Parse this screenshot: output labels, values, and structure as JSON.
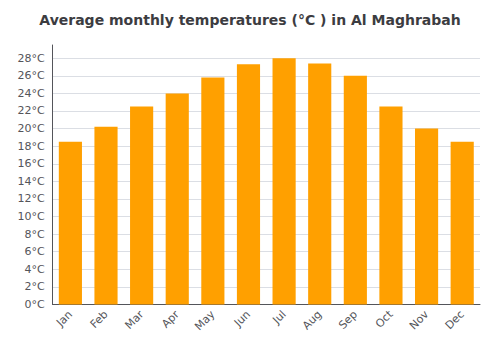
{
  "chart_data": {
    "type": "bar",
    "title": "Average monthly temperatures (°C ) in Al Maghrabah",
    "categories": [
      "Jan",
      "Feb",
      "Mar",
      "Apr",
      "May",
      "Jun",
      "Jul",
      "Aug",
      "Sep",
      "Oct",
      "Nov",
      "Dec"
    ],
    "values": [
      18.5,
      20.2,
      22.5,
      24.0,
      25.8,
      27.3,
      28.0,
      27.4,
      26.0,
      22.5,
      20.0,
      18.5
    ],
    "color": "#FFA000",
    "ylim": [
      0,
      29.5
    ],
    "yticks": [
      {
        "value": 0,
        "label": "0°C"
      },
      {
        "value": 2,
        "label": "2°C"
      },
      {
        "value": 4,
        "label": "4°C"
      },
      {
        "value": 6,
        "label": "6°C"
      },
      {
        "value": 8,
        "label": "8°C"
      },
      {
        "value": 10,
        "label": "10°C"
      },
      {
        "value": 12,
        "label": "12°C"
      },
      {
        "value": 14,
        "label": "14°C"
      },
      {
        "value": 16,
        "label": "16°C"
      },
      {
        "value": 18,
        "label": "18°C"
      },
      {
        "value": 20,
        "label": "20°C"
      },
      {
        "value": 22,
        "label": "22°C"
      },
      {
        "value": 24,
        "label": "24°C"
      },
      {
        "value": 26,
        "label": "26°C"
      },
      {
        "value": 28,
        "label": "28°C"
      }
    ],
    "grid": true
  }
}
